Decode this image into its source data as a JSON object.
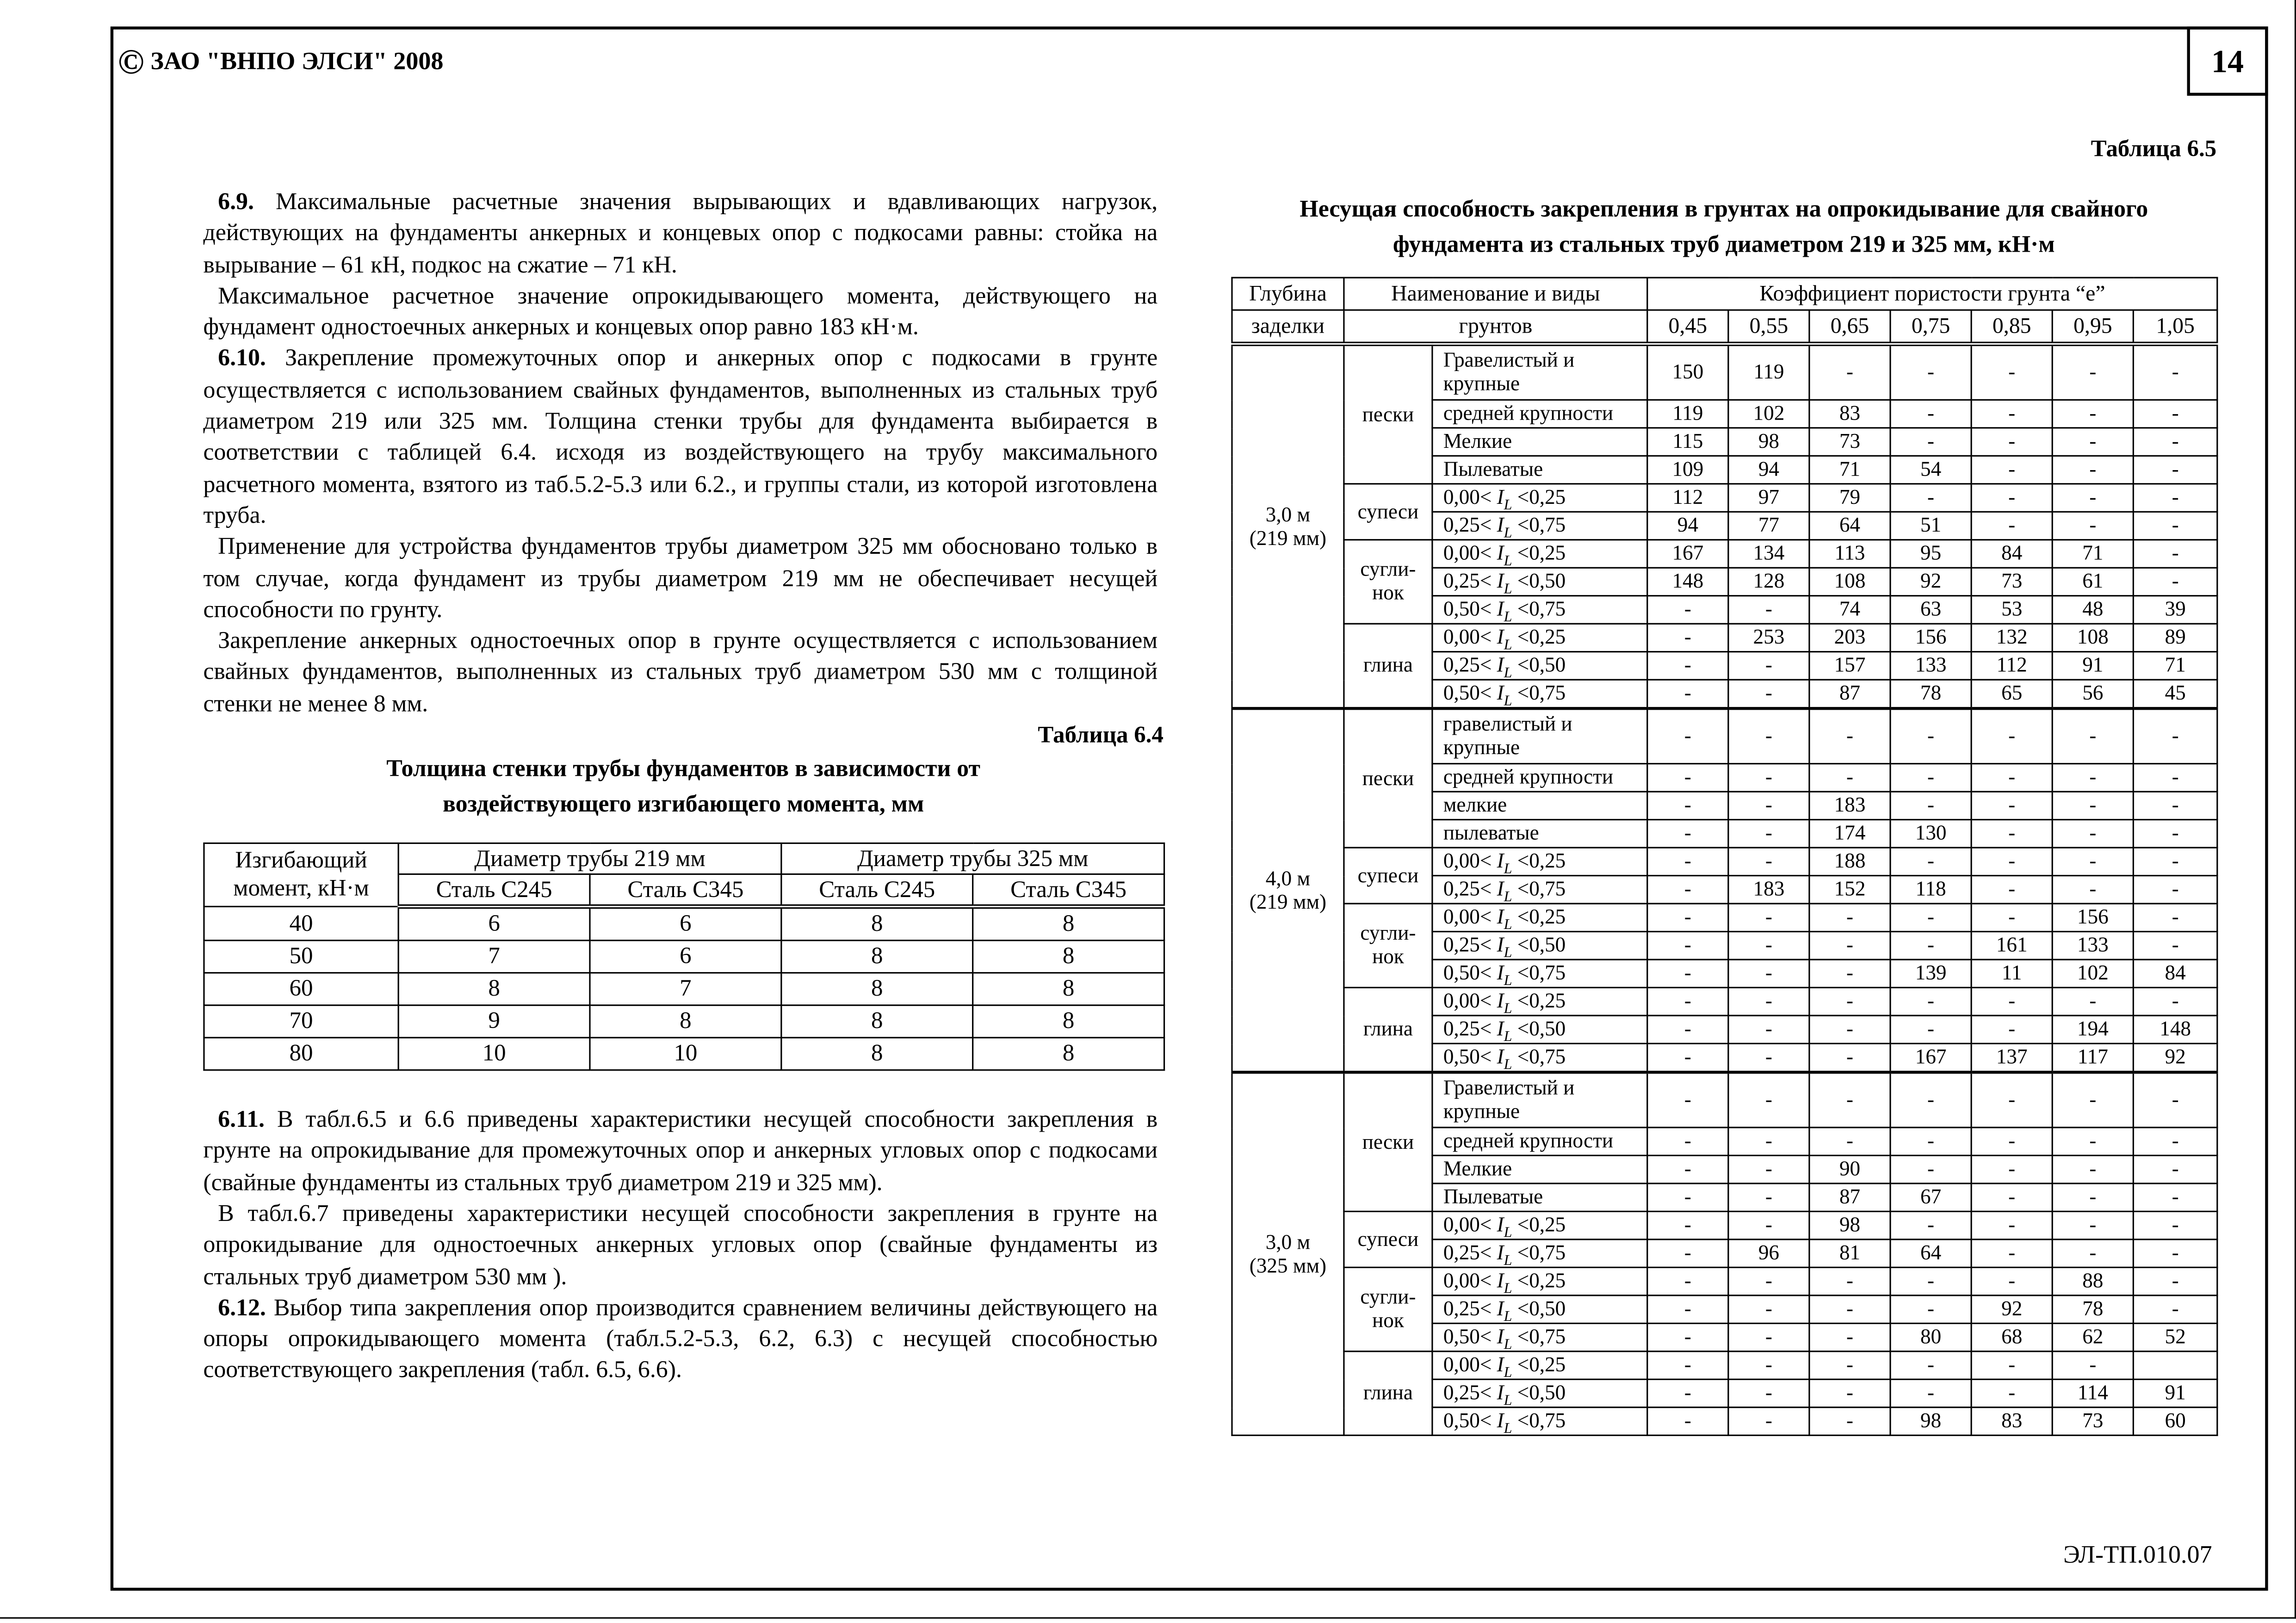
{
  "header": {
    "copyright_symbol": "©",
    "company": "ЗАО \"ВНПО ЭЛСИ\" 2008",
    "page_number": "14"
  },
  "footer": {
    "doc_code": "ЭЛ-ТП.010.07"
  },
  "left_text_top": [
    {
      "num": "6.9.",
      "text": " Максимальные расчетные значения вырывающих и вдавливающих нагрузок, действующих на фундаменты анкерных и концевых опор с подкосами равны: стойка на вырывание – 61 кН, подкос на сжатие – 71 кН."
    },
    {
      "num": "",
      "text": "Максимальное расчетное значение опрокидывающего момента, действующего на фундамент одностоечных  анкерных и концевых опор равно 183 кН·м."
    },
    {
      "num": "6.10.",
      "text": " Закрепление промежуточных опор и анкерных опор с подкосами в грунте осуществляется с использованием свайных фундаментов, выполненных из стальных труб диаметром 219 или 325 мм. Толщина стенки трубы для фундамента выбирается в соответствии с таблицей 6.4. исходя из воздействующего на трубу максимального расчетного момента, взятого из таб.5.2-5.3 или 6.2., и группы стали, из которой изготовлена труба."
    },
    {
      "num": "",
      "text": "Применение для устройства фундаментов трубы диаметром 325 мм обосновано только в том случае, когда фундамент из трубы диаметром 219 мм не обеспечивает несущей способности по грунту."
    },
    {
      "num": "",
      "text": "Закрепление анкерных одностоечных опор в грунте осуществляется с использованием свайных фундаментов, выполненных из стальных труб диаметром 530 мм с толщиной стенки не менее 8 мм."
    }
  ],
  "left_text_bottom": [
    {
      "num": "6.11.",
      "text": " В табл.6.5 и 6.6 приведены характеристики несущей способности закрепления в грунте на опрокидывание для промежуточных опор и анкерных угловых опор с подкосами (свайные фундаменты из стальных труб диаметром 219 и 325 мм)."
    },
    {
      "num": "",
      "text": "В табл.6.7 приведены характеристики несущей способности закрепления в грунте на опрокидывание для одностоечных анкерных угловых опор (свайные фундаменты из стальных труб диаметром 530 мм )."
    },
    {
      "num": "6.12.",
      "text": " Выбор типа закрепления опор производится сравнением величины действующего на опоры опрокидывающего момента (табл.5.2-5.3, 6.2, 6.3) с несущей способностью соответствующего закрепления (табл. 6.5, 6.6)."
    }
  ],
  "table64": {
    "caption": "Таблица 6.4",
    "title_line1": "Толщина стенки трубы фундаментов в зависимости от",
    "title_line2": "воздействующего изгибающего момента, мм",
    "h_moment_1": "Изгибающий",
    "h_moment_2": "момент, кН·м",
    "h_d219": "Диаметр трубы 219 мм",
    "h_d325": "Диаметр трубы 325 мм",
    "steels": [
      "Сталь С245",
      "Сталь С345",
      "Сталь С245",
      "Сталь С345"
    ],
    "rows": [
      [
        "40",
        "6",
        "6",
        "8",
        "8"
      ],
      [
        "50",
        "7",
        "6",
        "8",
        "8"
      ],
      [
        "60",
        "8",
        "7",
        "8",
        "8"
      ],
      [
        "70",
        "9",
        "8",
        "8",
        "8"
      ],
      [
        "80",
        "10",
        "10",
        "8",
        "8"
      ]
    ]
  },
  "table65": {
    "caption": "Таблица 6.5",
    "title_line1": "Несущая способность закрепления в грунтах на опрокидывание для свайного",
    "title_line2": "фундамента из стальных труб диаметром 219 и 325  мм,  кН·м",
    "h_depth_1": "Глубина",
    "h_depth_2": "заделки",
    "h_soil_1": "Наименование и виды",
    "h_soil_2": "грунтов",
    "h_coef": "Коэффициент пористости грунта  “е”",
    "coefs": [
      "0,45",
      "0,55",
      "0,65",
      "0,75",
      "0,85",
      "0,95",
      "1,05"
    ],
    "index_symbol": "I",
    "index_sub": "L",
    "groups": [
      {
        "depth": "3,0 м",
        "diam": "(219 мм)",
        "soils": [
          {
            "type": "пески",
            "rows": [
              {
                "name": "Гравелистый и крупные",
                "values": [
                  "150",
                  "119",
                  "-",
                  "-",
                  "-",
                  "-",
                  "-"
                ]
              },
              {
                "name": "средней крупности",
                "values": [
                  "119",
                  "102",
                  "83",
                  "-",
                  "-",
                  "-",
                  "-"
                ]
              },
              {
                "name": "Мелкие",
                "values": [
                  "115",
                  "98",
                  "73",
                  "-",
                  "-",
                  "-",
                  "-"
                ]
              },
              {
                "name": "Пылеватые",
                "values": [
                  "109",
                  "94",
                  "71",
                  "54",
                  "-",
                  "-",
                  "-"
                ]
              }
            ]
          },
          {
            "type": "супеси",
            "rows": [
              {
                "lo": "0,00<",
                "hi": "<0,25",
                "values": [
                  "112",
                  "97",
                  "79",
                  "-",
                  "-",
                  "-",
                  "-"
                ]
              },
              {
                "lo": "0,25<",
                "hi": "<0,75",
                "values": [
                  "94",
                  "77",
                  "64",
                  "51",
                  "-",
                  "-",
                  "-"
                ]
              }
            ]
          },
          {
            "type": "сугли-нок",
            "rows": [
              {
                "lo": "0,00<",
                "hi": "<0,25",
                "values": [
                  "167",
                  "134",
                  "113",
                  "95",
                  "84",
                  "71",
                  "-"
                ]
              },
              {
                "lo": "0,25<",
                "hi": "<0,50",
                "values": [
                  "148",
                  "128",
                  "108",
                  "92",
                  "73",
                  "61",
                  "-"
                ]
              },
              {
                "lo": "0,50<",
                "hi": "<0,75",
                "values": [
                  "-",
                  "-",
                  "74",
                  "63",
                  "53",
                  "48",
                  "39"
                ]
              }
            ]
          },
          {
            "type": "глина",
            "rows": [
              {
                "lo": "0,00<",
                "hi": "<0,25",
                "values": [
                  "-",
                  "253",
                  "203",
                  "156",
                  "132",
                  "108",
                  "89"
                ]
              },
              {
                "lo": "0,25<",
                "hi": "<0,50",
                "values": [
                  "-",
                  "-",
                  "157",
                  "133",
                  "112",
                  "91",
                  "71"
                ]
              },
              {
                "lo": "0,50<",
                "hi": "<0,75",
                "values": [
                  "-",
                  "-",
                  "87",
                  "78",
                  "65",
                  "56",
                  "45"
                ]
              }
            ]
          }
        ]
      },
      {
        "depth": "4,0 м",
        "diam": "(219 мм)",
        "soils": [
          {
            "type": "пески",
            "rows": [
              {
                "name": "гравелистый и крупные",
                "values": [
                  "-",
                  "-",
                  "-",
                  "-",
                  "-",
                  "-",
                  "-"
                ]
              },
              {
                "name": "средней крупности",
                "values": [
                  "-",
                  "-",
                  "-",
                  "-",
                  "-",
                  "-",
                  "-"
                ]
              },
              {
                "name": "мелкие",
                "values": [
                  "-",
                  "-",
                  "183",
                  "-",
                  "-",
                  "-",
                  "-"
                ]
              },
              {
                "name": "пылеватые",
                "values": [
                  "-",
                  "-",
                  "174",
                  "130",
                  "-",
                  "-",
                  "-"
                ]
              }
            ]
          },
          {
            "type": "супеси",
            "rows": [
              {
                "lo": "0,00<",
                "hi": "<0,25",
                "values": [
                  "-",
                  "-",
                  "188",
                  "-",
                  "-",
                  "-",
                  "-"
                ]
              },
              {
                "lo": "0,25<",
                "hi": "<0,75",
                "values": [
                  "-",
                  "183",
                  "152",
                  "118",
                  "-",
                  "-",
                  "-"
                ]
              }
            ]
          },
          {
            "type": "сугли-нок",
            "rows": [
              {
                "lo": "0,00<",
                "hi": "<0,25",
                "values": [
                  "-",
                  "-",
                  "-",
                  "-",
                  "-",
                  "156",
                  "-"
                ]
              },
              {
                "lo": "0,25<",
                "hi": "<0,50",
                "values": [
                  "-",
                  "-",
                  "-",
                  "-",
                  "161",
                  "133",
                  "-"
                ]
              },
              {
                "lo": "0,50<",
                "hi": "<0,75",
                "values": [
                  "-",
                  "-",
                  "-",
                  "139",
                  "11",
                  "102",
                  "84"
                ]
              }
            ]
          },
          {
            "type": "глина",
            "rows": [
              {
                "lo": "0,00<",
                "hi": "<0,25",
                "values": [
                  "-",
                  "-",
                  "-",
                  "-",
                  "-",
                  "-",
                  "-"
                ]
              },
              {
                "lo": "0,25<",
                "hi": "<0,50",
                "values": [
                  "-",
                  "-",
                  "-",
                  "-",
                  "-",
                  "194",
                  "148"
                ]
              },
              {
                "lo": "0,50<",
                "hi": "<0,75",
                "values": [
                  "-",
                  "-",
                  "-",
                  "167",
                  "137",
                  "117",
                  "92"
                ]
              }
            ]
          }
        ]
      },
      {
        "depth": "3,0 м",
        "diam": "(325 мм)",
        "soils": [
          {
            "type": "пески",
            "rows": [
              {
                "name": "Гравелистый и крупные",
                "values": [
                  "-",
                  "-",
                  "-",
                  "-",
                  "-",
                  "-",
                  "-"
                ]
              },
              {
                "name": "средней крупности",
                "values": [
                  "-",
                  "-",
                  "-",
                  "-",
                  "-",
                  "-",
                  "-"
                ]
              },
              {
                "name": "Мелкие",
                "values": [
                  "-",
                  "-",
                  "90",
                  "-",
                  "-",
                  "-",
                  "-"
                ]
              },
              {
                "name": "Пылеватые",
                "values": [
                  "-",
                  "-",
                  "87",
                  "67",
                  "-",
                  "-",
                  "-"
                ]
              }
            ]
          },
          {
            "type": "супеси",
            "rows": [
              {
                "lo": "0,00<",
                "hi": "<0,25",
                "values": [
                  "-",
                  "-",
                  "98",
                  "-",
                  "-",
                  "-",
                  "-"
                ]
              },
              {
                "lo": "0,25<",
                "hi": "<0,75",
                "values": [
                  "-",
                  "96",
                  "81",
                  "64",
                  "-",
                  "-",
                  "-"
                ]
              }
            ]
          },
          {
            "type": "сугли-нок",
            "rows": [
              {
                "lo": "0,00<",
                "hi": "<0,25",
                "values": [
                  "-",
                  "-",
                  "-",
                  "-",
                  "-",
                  "88",
                  "-"
                ]
              },
              {
                "lo": "0,25<",
                "hi": "<0,50",
                "values": [
                  "-",
                  "-",
                  "-",
                  "-",
                  "92",
                  "78",
                  "-"
                ]
              },
              {
                "lo": "0,50<",
                "hi": "<0,75",
                "values": [
                  "-",
                  "-",
                  "-",
                  "80",
                  "68",
                  "62",
                  "52"
                ]
              }
            ]
          },
          {
            "type": "глина",
            "rows": [
              {
                "lo": "0,00<",
                "hi": "<0,25",
                "values": [
                  "-",
                  "-",
                  "-",
                  "-",
                  "-",
                  "-",
                  ""
                ]
              },
              {
                "lo": "0,25<",
                "hi": "<0,50",
                "values": [
                  "-",
                  "-",
                  "-",
                  "-",
                  "-",
                  "114",
                  "91"
                ]
              },
              {
                "lo": "0,50<",
                "hi": "<0,75",
                "values": [
                  "-",
                  "-",
                  "-",
                  "98",
                  "83",
                  "73",
                  "60"
                ]
              }
            ]
          }
        ]
      }
    ]
  }
}
